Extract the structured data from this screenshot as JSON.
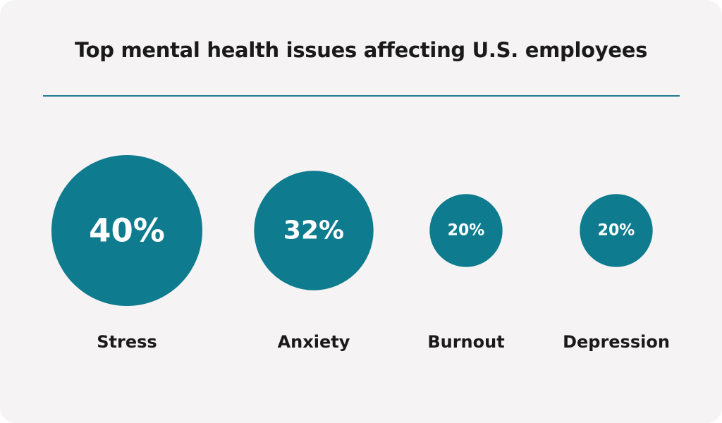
{
  "title": "Top mental health issues affecting U.S. employees",
  "colors": {
    "background": "#f5f3f4",
    "bubble": "#0f7b8e",
    "divider": "#1f7b91",
    "text": "#1a1a1a"
  },
  "chart_data": {
    "type": "bubble",
    "title": "Top mental health issues affecting U.S. employees",
    "categories": [
      "Stress",
      "Anxiety",
      "Burnout",
      "Depression"
    ],
    "values": [
      40,
      32,
      20,
      20
    ],
    "value_labels": [
      "40%",
      "32%",
      "20%",
      "20%"
    ],
    "unit": "%"
  }
}
